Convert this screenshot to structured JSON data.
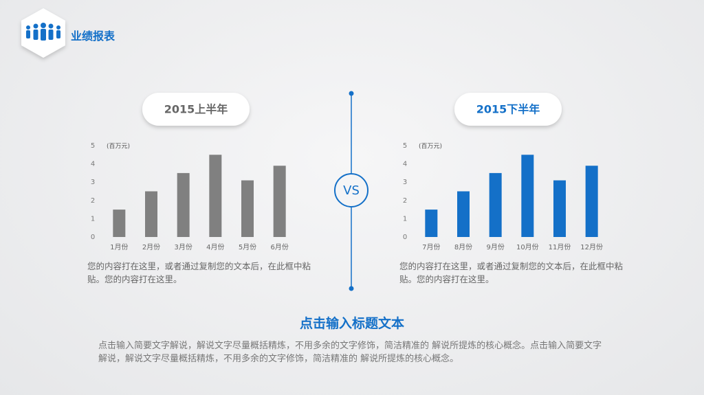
{
  "header": {
    "title": "业绩报表"
  },
  "vs": "VS",
  "chart_data": [
    {
      "type": "bar",
      "title": "2015上半年",
      "y_label": "(百万元)",
      "categories": [
        "1月份",
        "2月份",
        "3月份",
        "4月份",
        "5月份",
        "6月份"
      ],
      "values": [
        1.5,
        2.5,
        3.5,
        4.5,
        3.1,
        3.9
      ],
      "color": "#808080",
      "ylim": [
        0,
        5
      ],
      "yticks": [
        0,
        1,
        2,
        3,
        4,
        5
      ],
      "caption": "您的内容打在这里，或者通过复制您的文本后，在此框中粘贴。您的内容打在这里。"
    },
    {
      "type": "bar",
      "title": "2015下半年",
      "y_label": "(百万元)",
      "categories": [
        "7月份",
        "8月份",
        "9月份",
        "10月份",
        "11月份",
        "12月份"
      ],
      "values": [
        1.5,
        2.5,
        3.5,
        4.5,
        3.1,
        3.9
      ],
      "color": "#1470c8",
      "ylim": [
        0,
        5
      ],
      "yticks": [
        0,
        1,
        2,
        3,
        4,
        5
      ],
      "caption": "您的内容打在这里，或者通过复制您的文本后，在此框中粘贴。您的内容打在这里。"
    }
  ],
  "footer": {
    "title": "点击输入标题文本",
    "body": "点击输入简要文字解说，解说文字尽量概括精炼，不用多余的文字修饰，简洁精准的 解说所提炼的核心概念。点击输入简要文字解说，解说文字尽量概括精炼，不用多余的文字修饰，简洁精准的 解说所提炼的核心概念。"
  }
}
